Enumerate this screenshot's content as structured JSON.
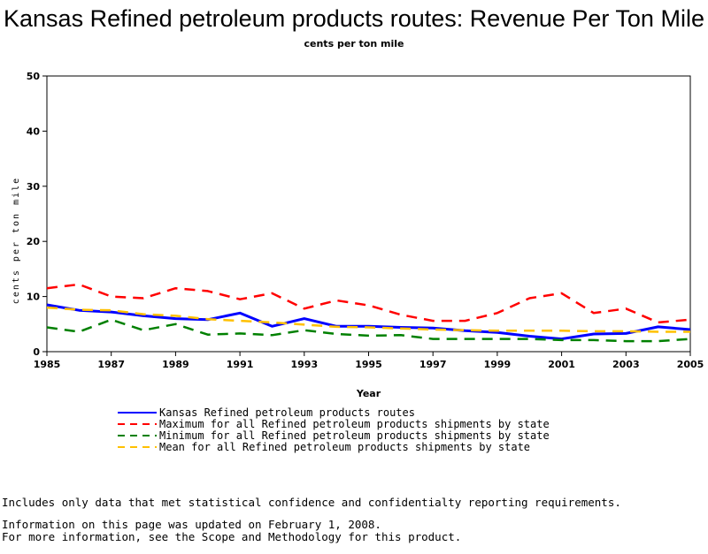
{
  "title": "Kansas Refined petroleum products routes: Revenue Per Ton Mile",
  "subtitle": "cents per ton mile",
  "notes": [
    "Includes only data that met statistical confidence and confidentialty reporting requirements.",
    "For more information, see the Scope and Methodology for this product."
  ],
  "updated": "Information on this page was updated on February 1, 2008.",
  "chart_data": {
    "type": "line",
    "title": "Kansas Refined petroleum products routes: Revenue Per Ton Mile",
    "subtitle": "cents per ton mile",
    "xlabel": "Year",
    "ylabel": "cents per ton mile",
    "xlim": [
      1985,
      2005
    ],
    "ylim": [
      0,
      50
    ],
    "x_ticks": [
      1985,
      1987,
      1989,
      1991,
      1993,
      1995,
      1997,
      1999,
      2001,
      2003,
      2005
    ],
    "y_ticks": [
      0,
      10,
      20,
      30,
      40,
      50
    ],
    "grid": false,
    "legend_position": "bottom",
    "x": [
      1985,
      1986,
      1987,
      1988,
      1989,
      1990,
      1991,
      1992,
      1993,
      1994,
      1995,
      1996,
      1997,
      1998,
      1999,
      2000,
      2001,
      2002,
      2003,
      2004,
      2005
    ],
    "series": [
      {
        "name": "Kansas Refined petroleum products routes",
        "color": "#0000ff",
        "style": "solid",
        "values": [
          8.5,
          7.5,
          7.2,
          6.5,
          6.0,
          5.8,
          7.0,
          4.6,
          6.0,
          4.6,
          4.6,
          4.4,
          4.3,
          3.8,
          3.5,
          2.8,
          2.3,
          3.2,
          3.3,
          4.5,
          4.0
        ]
      },
      {
        "name": "Maximum for all Refined petroleum products shipments by state",
        "color": "#ff0000",
        "style": "dashed",
        "values": [
          11.5,
          12.2,
          10.0,
          9.7,
          11.5,
          11.0,
          9.5,
          10.6,
          7.8,
          9.3,
          8.4,
          6.7,
          5.6,
          5.6,
          7.0,
          9.7,
          10.6,
          7.0,
          7.8,
          5.3,
          5.8
        ]
      },
      {
        "name": "Minimum for all Refined petroleum products shipments by state",
        "color": "#008000",
        "style": "dashed",
        "values": [
          4.4,
          3.6,
          5.8,
          3.9,
          5.0,
          3.1,
          3.3,
          3.0,
          3.9,
          3.2,
          2.9,
          3.0,
          2.3,
          2.3,
          2.3,
          2.3,
          2.1,
          2.1,
          1.9,
          1.9,
          2.3
        ]
      },
      {
        "name": "Mean for all Refined petroleum products shipments by state",
        "color": "#ffc000",
        "style": "dashed",
        "values": [
          8.0,
          7.6,
          7.5,
          6.8,
          6.5,
          5.9,
          5.6,
          5.3,
          4.9,
          4.5,
          4.4,
          4.2,
          4.0,
          3.9,
          3.8,
          3.8,
          3.8,
          3.7,
          3.7,
          3.6,
          3.6
        ]
      }
    ]
  }
}
